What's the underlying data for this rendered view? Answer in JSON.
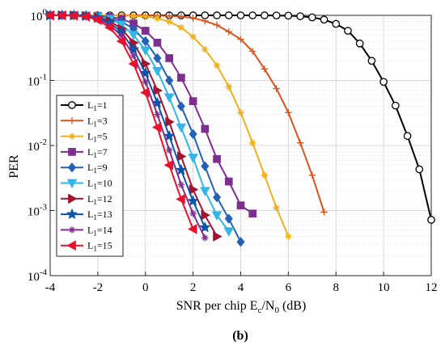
{
  "subfigure_label": "(b)",
  "chart_data": {
    "type": "line",
    "xlabel": {
      "main": "SNR per chip  E",
      "sub1": "c",
      "mid": "/N",
      "sub2": "0",
      "tail": " (dB)"
    },
    "ylabel": "PER",
    "xlim": [
      -4,
      12
    ],
    "ylim": [
      0.0001,
      1
    ],
    "yscale": "log",
    "grid": true,
    "legend_position": "left-middle",
    "x_ticks": [
      "-4",
      "-2",
      "0",
      "2",
      "4",
      "6",
      "8",
      "10",
      "12"
    ],
    "y_ticks": [
      {
        "base": "10",
        "exp": "0"
      },
      {
        "base": "10",
        "exp": "-1"
      },
      {
        "base": "10",
        "exp": "-2"
      },
      {
        "base": "10",
        "exp": "-3"
      },
      {
        "base": "10",
        "exp": "-4"
      }
    ],
    "series": [
      {
        "label": "L",
        "sub": "1",
        "value": "=1",
        "color": "#000000",
        "marker": "circle",
        "points": [
          [
            -4,
            1
          ],
          [
            -3.5,
            1
          ],
          [
            -3,
            1
          ],
          [
            -2.5,
            1
          ],
          [
            -2,
            1
          ],
          [
            -1.5,
            1
          ],
          [
            -1,
            1
          ],
          [
            -0.5,
            1
          ],
          [
            0,
            1
          ],
          [
            0.5,
            1
          ],
          [
            1,
            1
          ],
          [
            1.5,
            1
          ],
          [
            2,
            1
          ],
          [
            2.5,
            1
          ],
          [
            3,
            1
          ],
          [
            3.5,
            1
          ],
          [
            4,
            1
          ],
          [
            4.5,
            1
          ],
          [
            5,
            1
          ],
          [
            5.5,
            0.995
          ],
          [
            6,
            0.99
          ],
          [
            6.5,
            0.97
          ],
          [
            7,
            0.93
          ],
          [
            7.5,
            0.86
          ],
          [
            8,
            0.74
          ],
          [
            8.5,
            0.58
          ],
          [
            9,
            0.37
          ],
          [
            9.5,
            0.2
          ],
          [
            10,
            0.095
          ],
          [
            10.5,
            0.041
          ],
          [
            11,
            0.014
          ],
          [
            11.5,
            0.0043
          ],
          [
            12,
            0.00072
          ]
        ]
      },
      {
        "label": "L",
        "sub": "1",
        "value": "=3",
        "color": "#d95319",
        "marker": "plus",
        "points": [
          [
            -4,
            1
          ],
          [
            -3.5,
            1
          ],
          [
            -3,
            1
          ],
          [
            -2.5,
            1
          ],
          [
            -2,
            1
          ],
          [
            -1.5,
            1
          ],
          [
            -1,
            1
          ],
          [
            -0.5,
            1
          ],
          [
            0,
            1
          ],
          [
            0.5,
            0.99
          ],
          [
            1,
            0.98
          ],
          [
            1.5,
            0.96
          ],
          [
            2,
            0.91
          ],
          [
            2.5,
            0.82
          ],
          [
            3,
            0.71
          ],
          [
            3.5,
            0.56
          ],
          [
            4,
            0.43
          ],
          [
            4.5,
            0.28
          ],
          [
            5,
            0.15
          ],
          [
            5.5,
            0.075
          ],
          [
            6,
            0.032
          ],
          [
            6.5,
            0.011
          ],
          [
            7,
            0.0035
          ],
          [
            7.5,
            0.00095
          ]
        ]
      },
      {
        "label": "L",
        "sub": "1",
        "value": "=5",
        "color": "#edb120",
        "marker": "asterisk",
        "points": [
          [
            -4,
            1
          ],
          [
            -3.5,
            1
          ],
          [
            -3,
            1
          ],
          [
            -2.5,
            1
          ],
          [
            -2,
            1
          ],
          [
            -1.5,
            1
          ],
          [
            -1,
            0.99
          ],
          [
            -0.5,
            0.98
          ],
          [
            0,
            0.96
          ],
          [
            0.5,
            0.9
          ],
          [
            1,
            0.8
          ],
          [
            1.5,
            0.65
          ],
          [
            2,
            0.47
          ],
          [
            2.5,
            0.3
          ],
          [
            3,
            0.17
          ],
          [
            3.5,
            0.08
          ],
          [
            4,
            0.032
          ],
          [
            4.5,
            0.011
          ],
          [
            5,
            0.0035
          ],
          [
            5.5,
            0.0011
          ],
          [
            6,
            0.0004
          ]
        ]
      },
      {
        "label": "L",
        "sub": "1",
        "value": "=7",
        "color": "#7e2f8e",
        "marker": "square",
        "points": [
          [
            -4,
            1
          ],
          [
            -3.5,
            1
          ],
          [
            -3,
            1
          ],
          [
            -2.5,
            0.99
          ],
          [
            -2,
            0.98
          ],
          [
            -1.5,
            0.95
          ],
          [
            -1,
            0.88
          ],
          [
            -0.5,
            0.75
          ],
          [
            0,
            0.58
          ],
          [
            0.5,
            0.38
          ],
          [
            1,
            0.22
          ],
          [
            1.5,
            0.11
          ],
          [
            2,
            0.048
          ],
          [
            2.5,
            0.018
          ],
          [
            3,
            0.0062
          ],
          [
            3.5,
            0.0028
          ],
          [
            4,
            0.0012
          ],
          [
            4.5,
            0.0009
          ]
        ]
      },
      {
        "label": "L",
        "sub": "1",
        "value": "=9",
        "color": "#2460b4",
        "marker": "diamond",
        "points": [
          [
            -4,
            1
          ],
          [
            -3.5,
            1
          ],
          [
            -3,
            1
          ],
          [
            -2.5,
            0.99
          ],
          [
            -2,
            0.97
          ],
          [
            -1.5,
            0.91
          ],
          [
            -1,
            0.8
          ],
          [
            -0.5,
            0.62
          ],
          [
            0,
            0.4
          ],
          [
            0.5,
            0.22
          ],
          [
            1,
            0.1
          ],
          [
            1.5,
            0.04
          ],
          [
            2,
            0.015
          ],
          [
            2.5,
            0.0048
          ],
          [
            3,
            0.0016
          ],
          [
            3.5,
            0.00075
          ],
          [
            4,
            0.00033
          ]
        ]
      },
      {
        "label": "L",
        "sub": "1",
        "value": "=10",
        "color": "#33b5e5",
        "marker": "triangle-down",
        "points": [
          [
            -4,
            1
          ],
          [
            -3.5,
            1
          ],
          [
            -3,
            1
          ],
          [
            -2.5,
            0.99
          ],
          [
            -2,
            0.96
          ],
          [
            -1.5,
            0.88
          ],
          [
            -1,
            0.72
          ],
          [
            -0.5,
            0.5
          ],
          [
            0,
            0.29
          ],
          [
            0.5,
            0.14
          ],
          [
            1,
            0.055
          ],
          [
            1.5,
            0.019
          ],
          [
            2,
            0.0065
          ],
          [
            2.5,
            0.002
          ],
          [
            3,
            0.00085
          ],
          [
            3.5,
            0.00048
          ]
        ]
      },
      {
        "label": "L",
        "sub": "1",
        "value": "=12",
        "color": "#a2142f",
        "marker": "triangle-right",
        "points": [
          [
            -4,
            1
          ],
          [
            -3.5,
            1
          ],
          [
            -3,
            1
          ],
          [
            -2.5,
            0.98
          ],
          [
            -2,
            0.93
          ],
          [
            -1.5,
            0.82
          ],
          [
            -1,
            0.62
          ],
          [
            -0.5,
            0.38
          ],
          [
            0,
            0.18
          ],
          [
            0.5,
            0.07
          ],
          [
            1,
            0.023
          ],
          [
            1.5,
            0.0068
          ],
          [
            2,
            0.0021
          ],
          [
            2.5,
            0.00085
          ],
          [
            3,
            0.0004
          ]
        ]
      },
      {
        "label": "L",
        "sub": "1",
        "value": "=13",
        "color": "#0a55a8",
        "marker": "star",
        "points": [
          [
            -4,
            1
          ],
          [
            -3.5,
            1
          ],
          [
            -3,
            1
          ],
          [
            -2.5,
            0.98
          ],
          [
            -2,
            0.91
          ],
          [
            -1.5,
            0.77
          ],
          [
            -1,
            0.55
          ],
          [
            -0.5,
            0.3
          ],
          [
            0,
            0.13
          ],
          [
            0.5,
            0.045
          ],
          [
            1,
            0.014
          ],
          [
            1.5,
            0.0042
          ],
          [
            2,
            0.0014
          ],
          [
            2.5,
            0.00055
          ]
        ]
      },
      {
        "label": "L",
        "sub": "1",
        "value": "=14",
        "color": "#7e2f8e",
        "marker": "asterisk",
        "points": [
          [
            -4,
            1
          ],
          [
            -3.5,
            1
          ],
          [
            -3,
            0.99
          ],
          [
            -2.5,
            0.97
          ],
          [
            -2,
            0.89
          ],
          [
            -1.5,
            0.72
          ],
          [
            -1,
            0.48
          ],
          [
            -0.5,
            0.24
          ],
          [
            0,
            0.095
          ],
          [
            0.5,
            0.03
          ],
          [
            1,
            0.0085
          ],
          [
            1.5,
            0.0025
          ],
          [
            2,
            0.0009
          ],
          [
            2.5,
            0.00038
          ]
        ]
      },
      {
        "label": "L",
        "sub": "1",
        "value": "=15",
        "color": "#e8112d",
        "marker": "triangle-left",
        "points": [
          [
            -4,
            1
          ],
          [
            -3.5,
            1
          ],
          [
            -3,
            0.99
          ],
          [
            -2.5,
            0.96
          ],
          [
            -2,
            0.85
          ],
          [
            -1.5,
            0.65
          ],
          [
            -1,
            0.4
          ],
          [
            -0.5,
            0.18
          ],
          [
            0,
            0.065
          ],
          [
            0.5,
            0.019
          ],
          [
            1,
            0.005
          ],
          [
            1.5,
            0.0015
          ],
          [
            2,
            0.00052
          ]
        ]
      }
    ]
  }
}
